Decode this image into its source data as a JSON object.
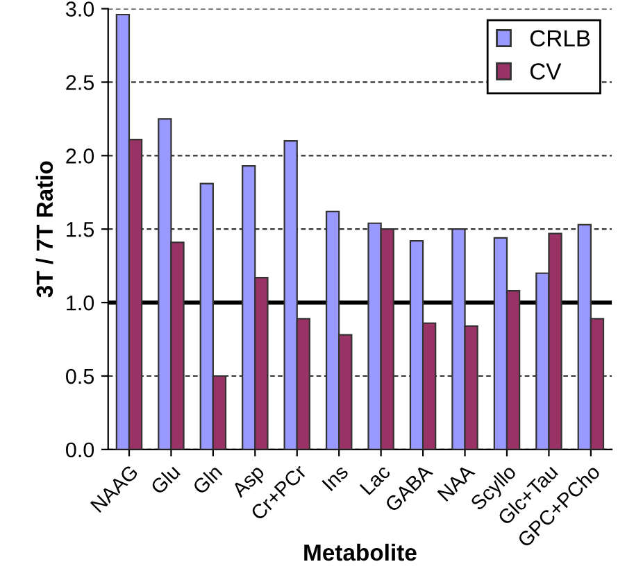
{
  "chart_data": {
    "type": "bar",
    "xlabel": "Metabolite",
    "ylabel": "3T / 7T Ratio",
    "categories": [
      "NAAG",
      "Glu",
      "Gln",
      "Asp",
      "Cr+PCr",
      "Ins",
      "Lac",
      "GABA",
      "NAA",
      "Scyllo",
      "Glc+Tau",
      "GPC+PCho"
    ],
    "series": [
      {
        "name": "CRLB",
        "color": "#9999ff",
        "values": [
          2.96,
          2.25,
          1.81,
          1.93,
          2.1,
          1.62,
          1.54,
          1.42,
          1.5,
          1.44,
          1.2,
          1.53
        ]
      },
      {
        "name": "CV",
        "color": "#993366",
        "values": [
          2.11,
          1.41,
          0.5,
          1.17,
          0.89,
          0.78,
          1.5,
          0.86,
          0.84,
          1.08,
          1.47,
          0.89
        ]
      }
    ],
    "ylim": [
      0,
      3
    ],
    "yticks": [
      {
        "value": 0,
        "label": "0.0"
      },
      {
        "value": 0.5,
        "label": "0.5"
      },
      {
        "value": 1,
        "label": "1.0"
      },
      {
        "value": 1.5,
        "label": "1.5"
      },
      {
        "value": 2,
        "label": "2.0"
      },
      {
        "value": 2.5,
        "label": "2.5"
      },
      {
        "value": 3,
        "label": "3.0"
      }
    ],
    "ref_lines": [
      {
        "axis": "y",
        "value": 1,
        "color": "#000000",
        "line_style": "solid"
      }
    ],
    "grid": "y",
    "legend": "top right"
  }
}
